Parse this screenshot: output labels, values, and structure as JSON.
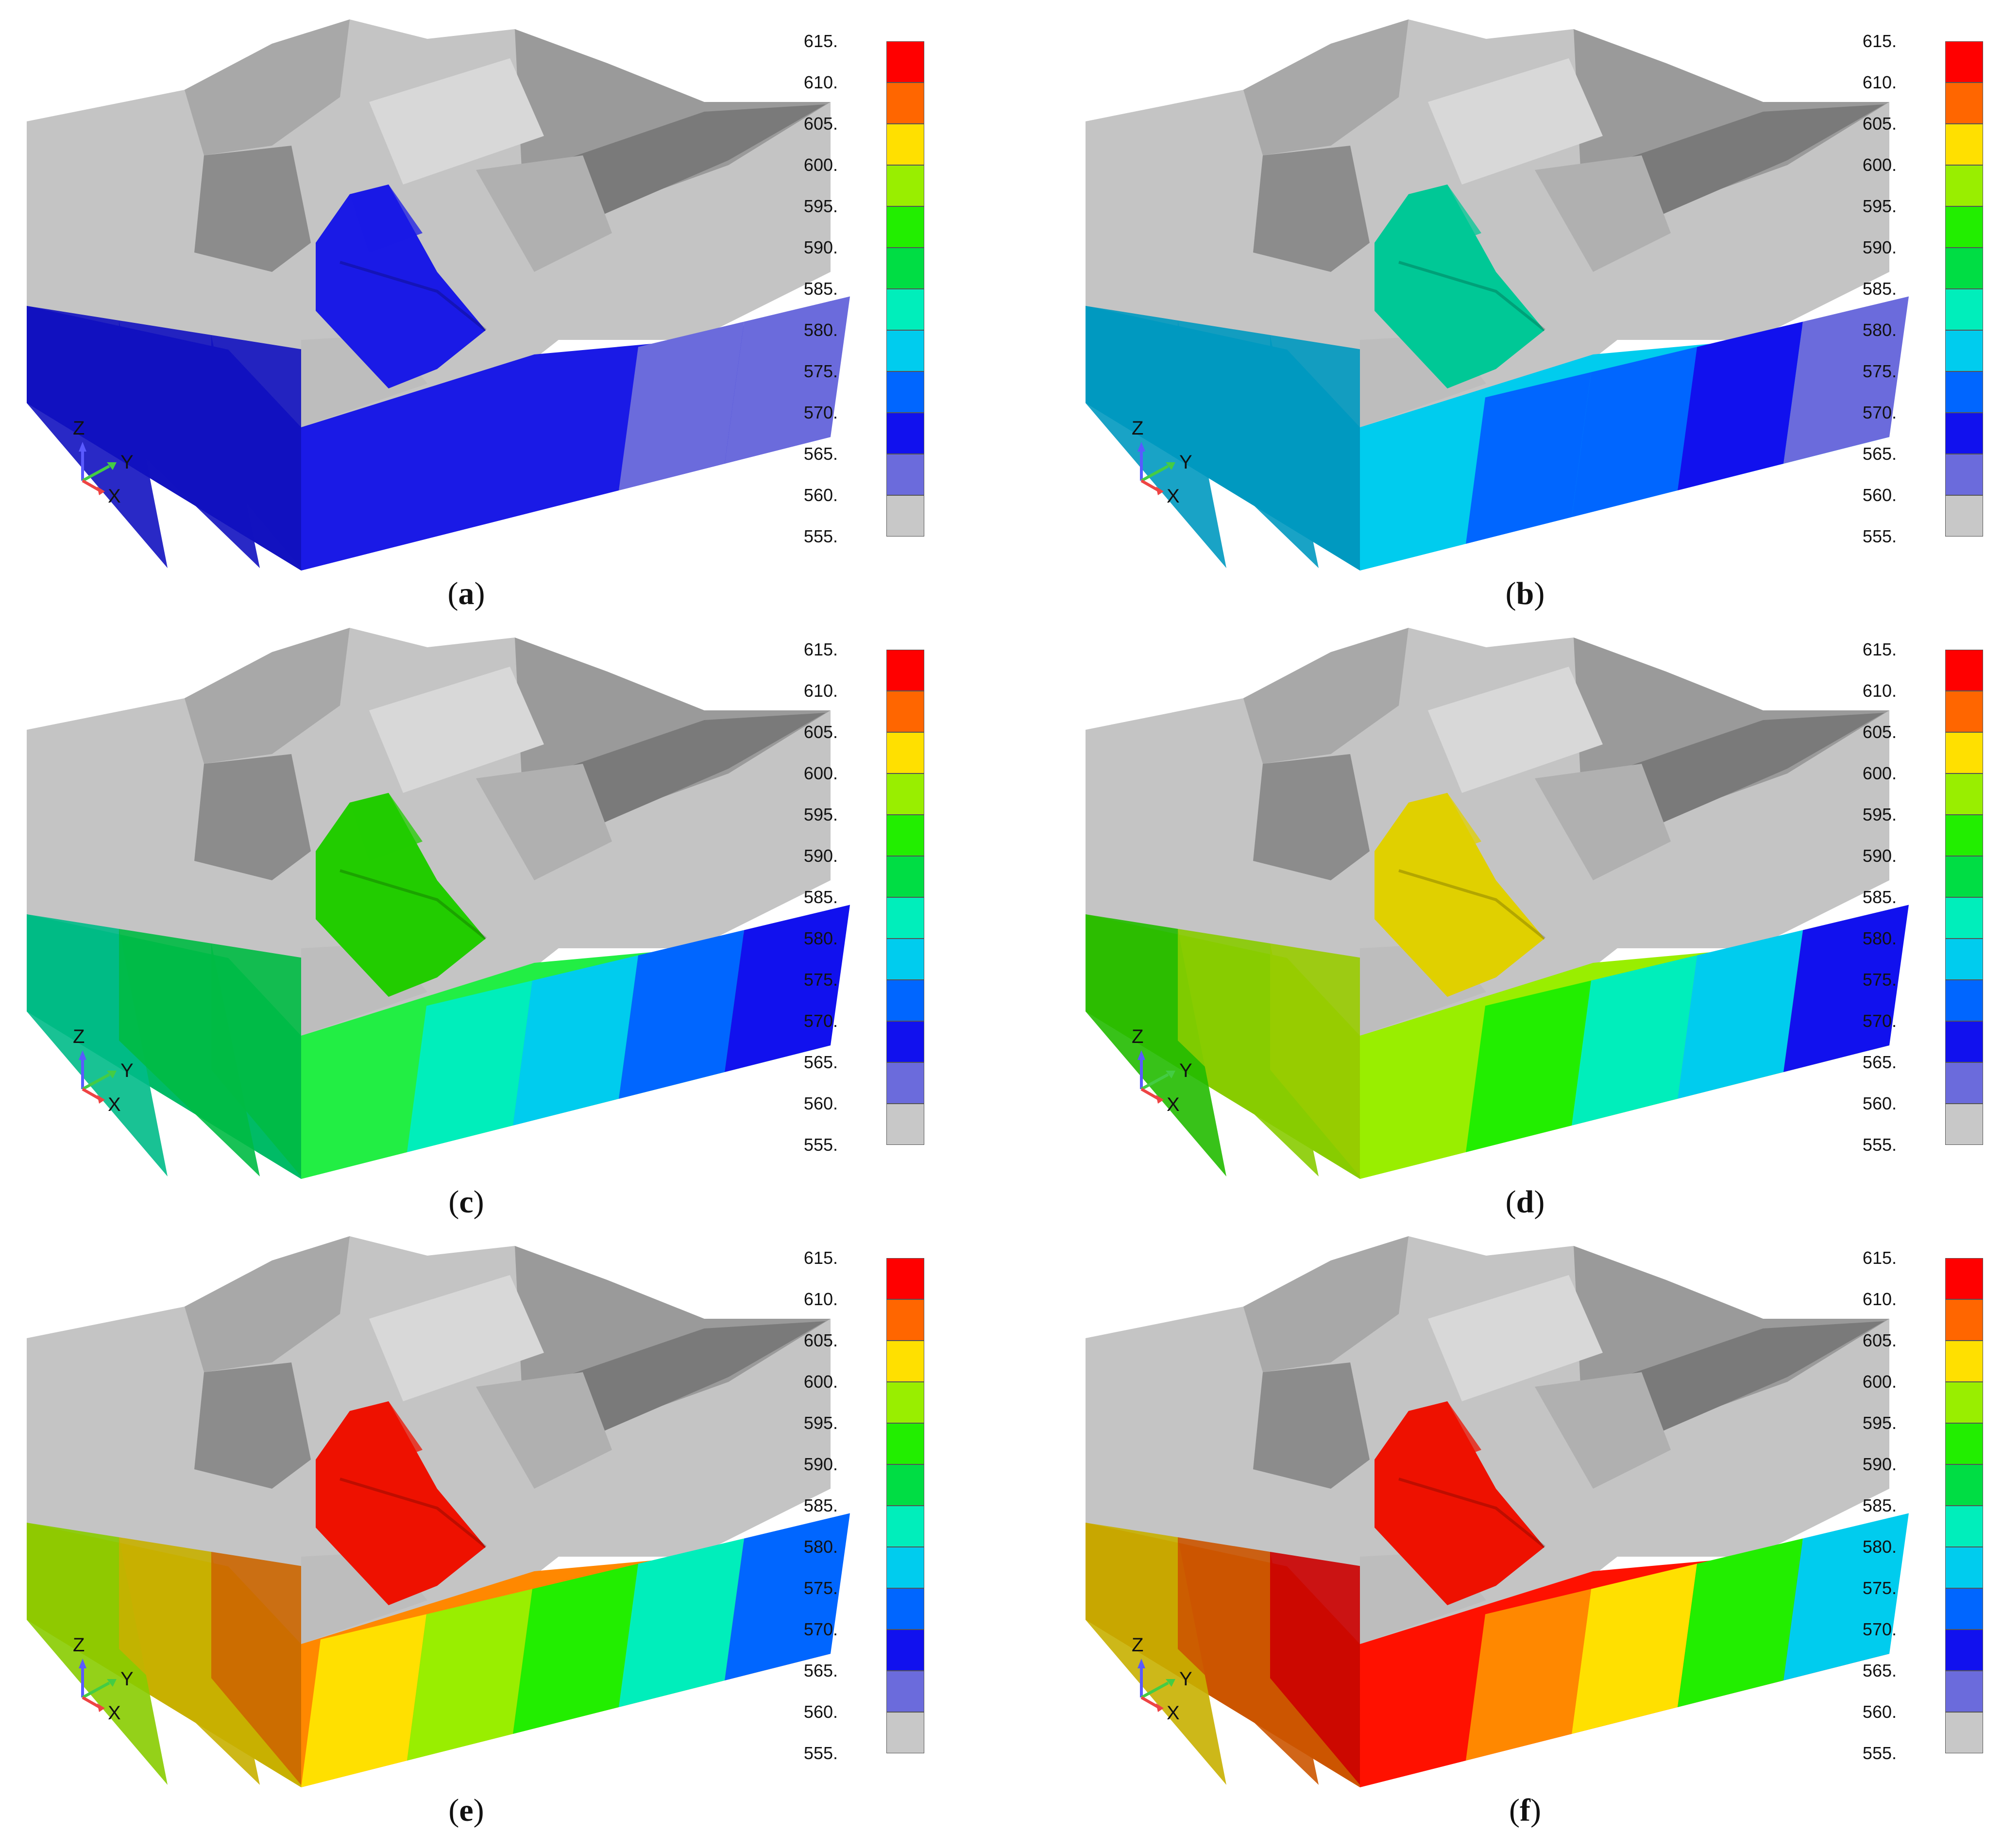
{
  "legend": {
    "ticks": [
      "615.",
      "610.",
      "605.",
      "600.",
      "595.",
      "590.",
      "585.",
      "580.",
      "575.",
      "570.",
      "565.",
      "560.",
      "555."
    ],
    "colors": [
      "#ff0000",
      "#ff6600",
      "#ffe000",
      "#99ee00",
      "#22ee00",
      "#00dd44",
      "#00eebb",
      "#00ccee",
      "#0066ff",
      "#1111ee",
      "#6b6bdc",
      "#c8c8c8"
    ]
  },
  "axes": {
    "z": "Z",
    "y": "Y",
    "x": "X"
  },
  "panels": [
    {
      "caption": "a",
      "fills": {
        "excavation": "#1a1ae6",
        "front": "#1a1ae6",
        "left": "#1212c0",
        "frontBands": [
          "#1a1ae6",
          "#1a1ae6",
          "#1a1ae6",
          "#6b6bdc",
          "#6b6bdc"
        ],
        "leftBands": [
          "#1212c0",
          "#1212c0",
          "#1212c0"
        ]
      }
    },
    {
      "caption": "b",
      "fills": {
        "excavation": "#00c896",
        "front": "#00ccee",
        "left": "#0099c0",
        "frontBands": [
          "#00ccee",
          "#0066ff",
          "#0066ff",
          "#1111ee",
          "#6b6bdc"
        ],
        "leftBands": [
          "#0099c0",
          "#0099c0",
          "#0099c0"
        ]
      }
    },
    {
      "caption": "c",
      "fills": {
        "excavation": "#22cc00",
        "front": "#22ee44",
        "left": "#00bb66",
        "frontBands": [
          "#22ee44",
          "#00eebb",
          "#00ccee",
          "#0066ff",
          "#1111ee"
        ],
        "leftBands": [
          "#00bb88",
          "#00bb44",
          "#00bb44"
        ]
      }
    },
    {
      "caption": "d",
      "fills": {
        "excavation": "#e0d000",
        "front": "#99ee00",
        "left": "#88cc00",
        "frontBands": [
          "#99ee00",
          "#22ee00",
          "#00eebb",
          "#00ccee",
          "#1111ee"
        ],
        "leftBands": [
          "#22bb00",
          "#88cc00",
          "#99cc00"
        ]
      }
    },
    {
      "caption": "e",
      "fills": {
        "excavation": "#ee1100",
        "front": "#ff8800",
        "left": "#c8b000",
        "frontBands": [
          "#ffe000",
          "#99ee00",
          "#22ee00",
          "#00eebb",
          "#0066ff"
        ],
        "leftBands": [
          "#88cc00",
          "#c8b000",
          "#cc6600"
        ]
      }
    },
    {
      "caption": "f",
      "fills": {
        "excavation": "#ee1100",
        "front": "#ff1100",
        "left": "#cc5500",
        "frontBands": [
          "#ff1100",
          "#ff8800",
          "#ffe000",
          "#22ee00",
          "#00ccee"
        ],
        "leftBands": [
          "#c8b000",
          "#cc5500",
          "#cc0000"
        ]
      }
    }
  ]
}
